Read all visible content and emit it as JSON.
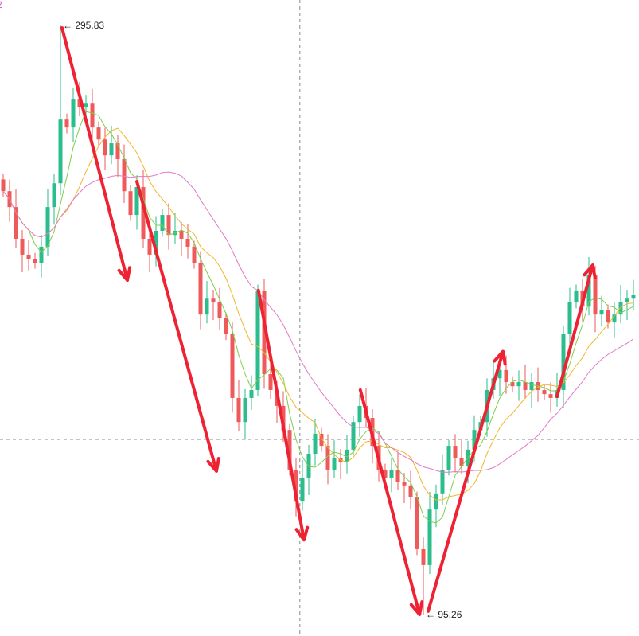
{
  "chart_data": {
    "type": "candlestick",
    "legend_fragment": "2",
    "close": [
      239.4,
      234.0,
      223.2,
      217.8,
      216.4,
      215.0,
      220.5,
      234.0,
      242.1,
      263.8,
      261.1,
      270.6,
      267.9,
      269.2,
      261.1,
      257.0,
      251.6,
      255.7,
      250.3,
      239.4,
      231.3,
      240.8,
      223.2,
      217.8,
      225.9,
      231.3,
      224.5,
      225.9,
      223.2,
      220.5,
      215.0,
      197.4,
      202.8,
      201.5,
      196.1,
      190.7,
      169.0,
      160.8,
      169.0,
      171.7,
      205.6,
      177.1,
      171.7,
      166.3,
      158.1,
      144.6,
      133.7,
      141.9,
      150.0,
      156.8,
      152.7,
      144.6,
      148.6,
      147.3,
      151.4,
      160.8,
      166.3,
      162.2,
      152.7,
      144.6,
      141.9,
      144.6,
      140.5,
      139.2,
      135.1,
      117.5,
      112.1,
      131.0,
      136.5,
      144.6,
      152.7,
      148.6,
      145.9,
      151.4,
      158.1,
      160.8,
      171.7,
      175.7,
      178.5,
      174.4,
      173.0,
      174.4,
      171.7,
      174.4,
      171.7,
      170.3,
      169.0,
      171.7,
      190.7,
      201.5,
      205.6,
      200.1,
      211.0,
      197.4,
      198.8,
      194.7,
      197.4,
      201.5,
      202.8,
      204.2
    ],
    "max_label": {
      "index": 9,
      "value": 295.83,
      "text": "295.83"
    },
    "min_label": {
      "index": 66,
      "value": 95.26,
      "text": "95.26"
    },
    "crosshair": {
      "index": 46.6,
      "value": 154.9
    },
    "moving_averages": [
      {
        "period": 5,
        "color": "#7ccf4a"
      },
      {
        "period": 10,
        "color": "#f0b82a"
      },
      {
        "period": 20,
        "color": "#e27ac8"
      }
    ],
    "colors": {
      "up": "#2bbd8c",
      "down": "#ee5a5a",
      "arrow": "#ee2233",
      "legend": "#d84fbf"
    },
    "annotations": [
      {
        "from": [
          9.25,
          295.0
        ],
        "to": [
          19.5,
          209.1
        ]
      },
      {
        "from": [
          21.0,
          242.7
        ],
        "to": [
          33.5,
          144.1
        ]
      },
      {
        "from": [
          40.1,
          205.6
        ],
        "to": [
          47.25,
          120.7
        ]
      },
      {
        "from": [
          56.1,
          171.7
        ],
        "to": [
          65.4,
          95.3
        ]
      },
      {
        "from": [
          66.75,
          96.4
        ],
        "to": [
          78.5,
          184.8
        ]
      },
      {
        "from": [
          87.0,
          169.5
        ],
        "to": [
          92.6,
          214.2
        ]
      }
    ]
  }
}
